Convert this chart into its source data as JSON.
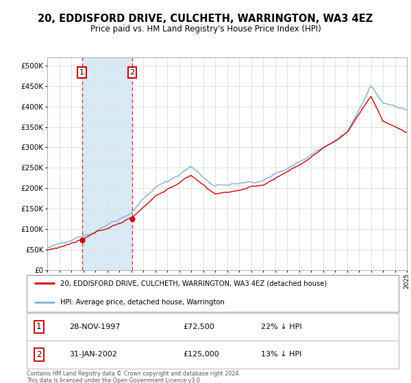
{
  "title": "20, EDDISFORD DRIVE, CULCHETH, WARRINGTON, WA3 4EZ",
  "subtitle": "Price paid vs. HM Land Registry's House Price Index (HPI)",
  "legend_line1": "20, EDDISFORD DRIVE, CULCHETH, WARRINGTON, WA3 4EZ (detached house)",
  "legend_line2": "HPI: Average price, detached house, Warrington",
  "sale1_label": "1",
  "sale1_date": "28-NOV-1997",
  "sale1_price": "£72,500",
  "sale1_hpi": "22% ↓ HPI",
  "sale1_year": 1997.9,
  "sale1_value": 72500,
  "sale2_label": "2",
  "sale2_date": "31-JAN-2002",
  "sale2_price": "£125,000",
  "sale2_hpi": "13% ↓ HPI",
  "sale2_year": 2002.08,
  "sale2_value": 125000,
  "xmin": 1995,
  "xmax": 2025,
  "ymin": 0,
  "ymax": 500000,
  "yticks": [
    0,
    50000,
    100000,
    150000,
    200000,
    250000,
    300000,
    350000,
    400000,
    450000,
    500000
  ],
  "price_color": "#cc0000",
  "hpi_color": "#7ab0d4",
  "hpi_fill_color": "#d8eaf5",
  "background_color": "#ffffff",
  "grid_color": "#dddddd",
  "footnote": "Contains HM Land Registry data © Crown copyright and database right 2024.\nThis data is licensed under the Open Government Licence v3.0."
}
